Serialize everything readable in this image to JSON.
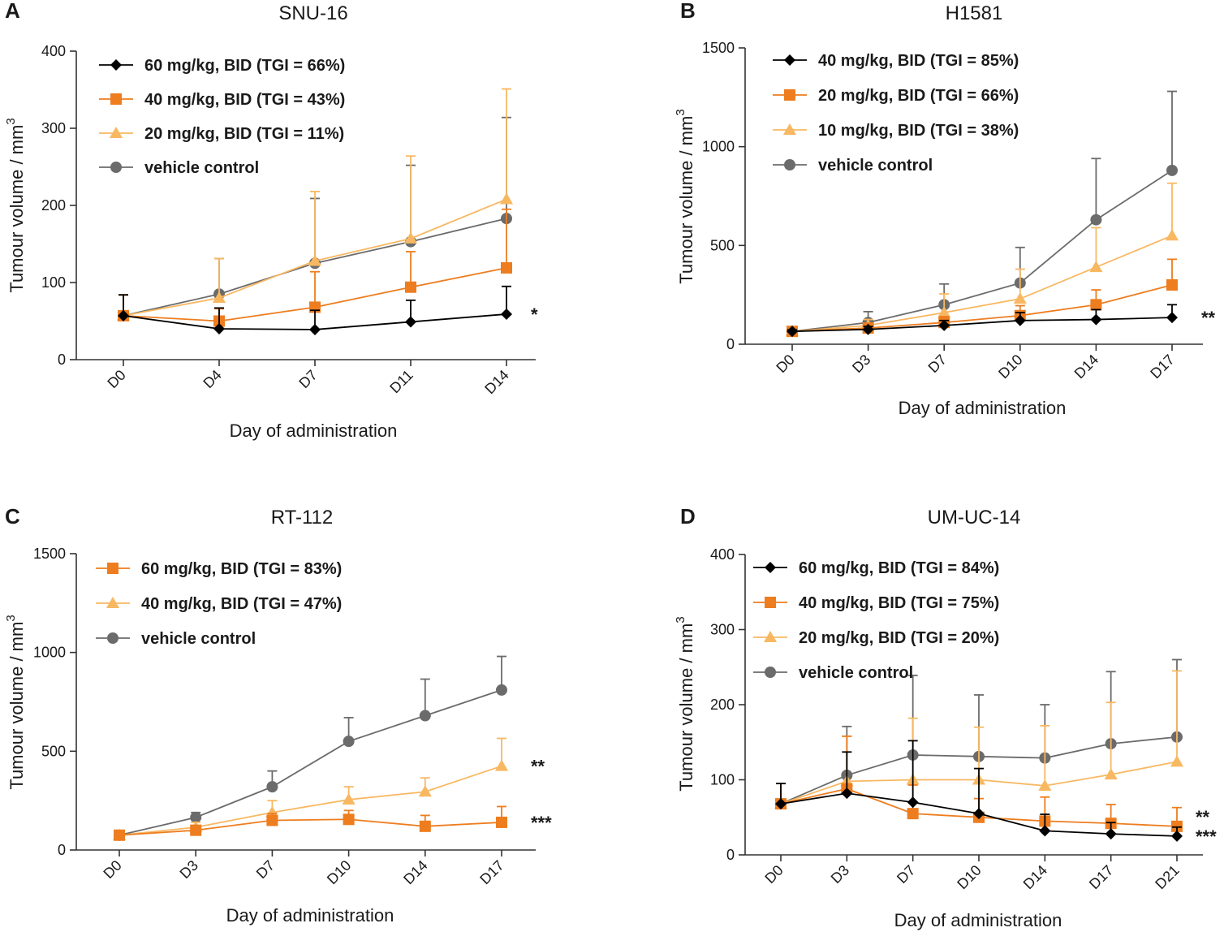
{
  "colors": {
    "black": "#000000",
    "orange": "#ED7D1F",
    "light_orange": "#F8B862",
    "grey": "#6B6B6B",
    "axis": "#333333"
  },
  "chart_data": [
    {
      "panel": "A",
      "type": "line",
      "title": "SNU-16",
      "xlabel": "Day of administration",
      "ylabel": "Tumour volume / mm",
      "ylabel_sup": "3",
      "categories": [
        "D0",
        "D4",
        "D7",
        "D11",
        "D14"
      ],
      "ylim": [
        0,
        400
      ],
      "yticks": [
        0,
        100,
        200,
        300,
        400
      ],
      "legend_position": "top-left",
      "series": [
        {
          "name": "60 mg/kg, BID (TGI = 66%)",
          "color": "black",
          "marker": "diamond",
          "values": [
            57,
            40,
            39,
            49,
            59
          ],
          "errors": [
            27,
            27,
            25,
            28,
            36
          ]
        },
        {
          "name": "40 mg/kg, BID (TGI = 43%)",
          "color": "orange",
          "marker": "square",
          "values": [
            57,
            50,
            68,
            94,
            119
          ],
          "errors": [
            27,
            16,
            46,
            46,
            76
          ]
        },
        {
          "name": "20 mg/kg, BID (TGI = 11%)",
          "color": "light_orange",
          "marker": "triangle",
          "values": [
            57,
            80,
            128,
            157,
            208
          ],
          "errors": [
            27,
            51,
            90,
            107,
            143
          ]
        },
        {
          "name": "vehicle control",
          "color": "grey",
          "marker": "circle",
          "values": [
            57,
            85,
            125,
            153,
            183
          ],
          "errors": [
            27,
            46,
            84,
            99,
            131
          ]
        }
      ],
      "annotations": [
        {
          "text": "*",
          "series": 0
        }
      ]
    },
    {
      "panel": "B",
      "type": "line",
      "title": "H1581",
      "xlabel": "Day of administration",
      "ylabel": "Tumour volume / mm",
      "ylabel_sup": "3",
      "categories": [
        "D0",
        "D3",
        "D7",
        "D10",
        "D14",
        "D17"
      ],
      "ylim": [
        0,
        1500
      ],
      "yticks": [
        0,
        500,
        1000,
        1500
      ],
      "legend_position": "top-left",
      "series": [
        {
          "name": "40 mg/kg, BID (TGI = 85%)",
          "color": "black",
          "marker": "diamond",
          "values": [
            65,
            75,
            95,
            120,
            125,
            135
          ],
          "errors": [
            8,
            15,
            25,
            40,
            50,
            65
          ]
        },
        {
          "name": "20 mg/kg, BID (TGI = 66%)",
          "color": "orange",
          "marker": "square",
          "values": [
            65,
            82,
            110,
            145,
            200,
            300
          ],
          "errors": [
            8,
            20,
            30,
            50,
            75,
            130
          ]
        },
        {
          "name": "10 mg/kg, BID (TGI = 38%)",
          "color": "light_orange",
          "marker": "triangle",
          "values": [
            65,
            95,
            160,
            230,
            390,
            550
          ],
          "errors": [
            8,
            30,
            95,
            150,
            200,
            265
          ]
        },
        {
          "name": "vehicle control",
          "color": "grey",
          "marker": "circle",
          "values": [
            65,
            110,
            200,
            310,
            630,
            880
          ],
          "errors": [
            8,
            55,
            105,
            180,
            310,
            400
          ]
        }
      ],
      "annotations": [
        {
          "text": "**",
          "series": 0
        }
      ]
    },
    {
      "panel": "C",
      "type": "line",
      "title": "RT-112",
      "xlabel": "Day of administration",
      "ylabel": "Tumour volume / mm",
      "ylabel_sup": "3",
      "categories": [
        "D0",
        "D3",
        "D7",
        "D10",
        "D14",
        "D17"
      ],
      "ylim": [
        0,
        1500
      ],
      "yticks": [
        0,
        500,
        1000,
        1500
      ],
      "legend_position": "top-left",
      "series": [
        {
          "name": "60 mg/kg, BID (TGI = 83%)",
          "color": "orange",
          "marker": "square",
          "values": [
            75,
            100,
            150,
            155,
            120,
            140
          ],
          "errors": [
            8,
            20,
            35,
            45,
            55,
            80
          ]
        },
        {
          "name": "40 mg/kg, BID (TGI = 47%)",
          "color": "light_orange",
          "marker": "triangle",
          "values": [
            75,
            115,
            190,
            255,
            295,
            425
          ],
          "errors": [
            8,
            25,
            60,
            65,
            70,
            140
          ]
        },
        {
          "name": "vehicle control",
          "color": "grey",
          "marker": "circle",
          "values": [
            75,
            165,
            320,
            550,
            680,
            810
          ],
          "errors": [
            8,
            25,
            80,
            120,
            185,
            170
          ]
        }
      ],
      "annotations": [
        {
          "text": "***",
          "series": 0
        },
        {
          "text": "**",
          "series": 1
        }
      ]
    },
    {
      "panel": "D",
      "type": "line",
      "title": "UM-UC-14",
      "xlabel": "Day of administration",
      "ylabel": "Tumour volume / mm",
      "ylabel_sup": "3",
      "categories": [
        "D0",
        "D3",
        "D7",
        "D10",
        "D14",
        "D17",
        "D21"
      ],
      "ylim": [
        0,
        400
      ],
      "yticks": [
        0,
        100,
        200,
        300,
        400
      ],
      "legend_position": "top-left",
      "series": [
        {
          "name": "60 mg/kg, BID (TGI = 84%)",
          "color": "black",
          "marker": "diamond",
          "values": [
            68,
            82,
            70,
            55,
            32,
            28,
            25
          ],
          "errors": [
            27,
            55,
            82,
            60,
            22,
            15,
            12
          ]
        },
        {
          "name": "40 mg/kg, BID (TGI = 75%)",
          "color": "orange",
          "marker": "square",
          "values": [
            68,
            88,
            55,
            50,
            45,
            42,
            38
          ],
          "errors": [
            27,
            70,
            38,
            25,
            32,
            25,
            25
          ]
        },
        {
          "name": "20 mg/kg, BID (TGI = 20%)",
          "color": "light_orange",
          "marker": "triangle",
          "values": [
            68,
            98,
            100,
            100,
            92,
            107,
            124
          ],
          "errors": [
            27,
            60,
            82,
            70,
            80,
            96,
            121
          ]
        },
        {
          "name": "vehicle control",
          "color": "grey",
          "marker": "circle",
          "values": [
            68,
            106,
            133,
            131,
            129,
            148,
            157
          ],
          "errors": [
            27,
            65,
            106,
            82,
            71,
            96,
            103
          ]
        }
      ],
      "annotations": [
        {
          "text": "***",
          "series": 0
        },
        {
          "text": "**",
          "series": 1
        }
      ]
    }
  ]
}
